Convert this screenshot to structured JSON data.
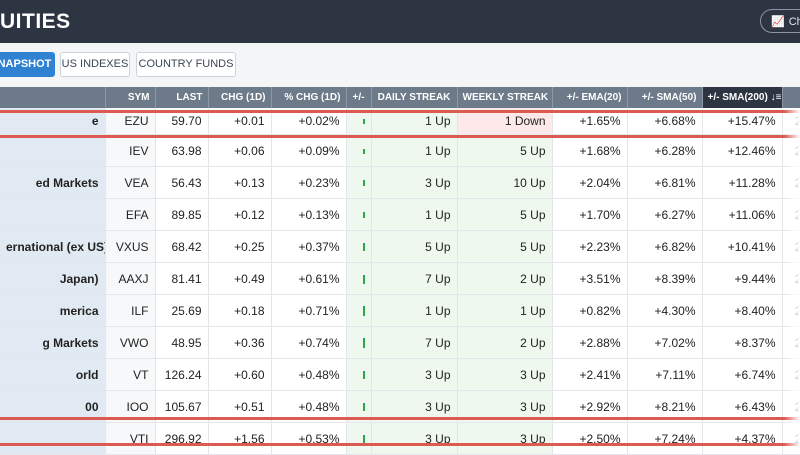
{
  "header": {
    "title": "UITIES",
    "chart_button": {
      "label": "Cha",
      "icon": "line-chart-icon"
    }
  },
  "tabs": [
    {
      "label": "NAPSHOT",
      "active": true
    },
    {
      "label": "US INDEXES",
      "active": false
    },
    {
      "label": "COUNTRY FUNDS",
      "active": false
    }
  ],
  "columns": {
    "name": "",
    "sym": "SYM",
    "last": "LAST",
    "chg": "CHG (1D)",
    "pchg": "% CHG (1D)",
    "pm": "+/-",
    "daily": "DAILY STREAK",
    "weekly": "WEEKLY STREAK",
    "ema20": "+/- EMA(20)",
    "sma50": "+/- SMA(50)",
    "sma200": "+/- SMA(200)",
    "sort_icon": "sort-descending-icon"
  },
  "rows": [
    {
      "name": "e",
      "sym": "EZU",
      "last": "59.70",
      "chg": "+0.01",
      "pchg": "+0.02%",
      "bar_level": 0.2,
      "daily": "1 Up",
      "weekly": "1 Down",
      "weekly_dir": "down",
      "ema20": "+1.65%",
      "sma50": "+6.68%",
      "sma200": "+15.47%",
      "extra": "2"
    },
    {
      "name": "",
      "sym": "IEV",
      "last": "63.98",
      "chg": "+0.06",
      "pchg": "+0.09%",
      "bar_level": 0.25,
      "daily": "1 Up",
      "weekly": "5 Up",
      "weekly_dir": "up",
      "ema20": "+1.68%",
      "sma50": "+6.28%",
      "sma200": "+12.46%",
      "extra": "2"
    },
    {
      "name": "ed Markets",
      "sym": "VEA",
      "last": "56.43",
      "chg": "+0.13",
      "pchg": "+0.23%",
      "bar_level": 0.35,
      "daily": "3 Up",
      "weekly": "10 Up",
      "weekly_dir": "up",
      "ema20": "+2.04%",
      "sma50": "+6.81%",
      "sma200": "+11.28%",
      "extra": "2"
    },
    {
      "name": "",
      "sym": "EFA",
      "last": "89.85",
      "chg": "+0.12",
      "pchg": "+0.13%",
      "bar_level": 0.3,
      "daily": "1 Up",
      "weekly": "5 Up",
      "weekly_dir": "up",
      "ema20": "+1.70%",
      "sma50": "+6.27%",
      "sma200": "+11.06%",
      "extra": "2"
    },
    {
      "name": "ernational (ex US)",
      "sym": "VXUS",
      "last": "68.42",
      "chg": "+0.25",
      "pchg": "+0.37%",
      "bar_level": 0.5,
      "daily": "5 Up",
      "weekly": "5 Up",
      "weekly_dir": "up",
      "ema20": "+2.23%",
      "sma50": "+6.82%",
      "sma200": "+10.41%",
      "extra": "2"
    },
    {
      "name": "Japan)",
      "sym": "AAXJ",
      "last": "81.41",
      "chg": "+0.49",
      "pchg": "+0.61%",
      "bar_level": 0.7,
      "daily": "7 Up",
      "weekly": "2 Up",
      "weekly_dir": "up",
      "ema20": "+3.51%",
      "sma50": "+8.39%",
      "sma200": "+9.44%",
      "extra": "2"
    },
    {
      "name": "merica",
      "sym": "ILF",
      "last": "25.69",
      "chg": "+0.18",
      "pchg": "+0.71%",
      "bar_level": 0.75,
      "daily": "1 Up",
      "weekly": "1 Up",
      "weekly_dir": "up",
      "ema20": "+0.82%",
      "sma50": "+4.30%",
      "sma200": "+8.40%",
      "extra": "2"
    },
    {
      "name": "g Markets",
      "sym": "VWO",
      "last": "48.95",
      "chg": "+0.36",
      "pchg": "+0.74%",
      "bar_level": 0.75,
      "daily": "7 Up",
      "weekly": "2 Up",
      "weekly_dir": "up",
      "ema20": "+2.88%",
      "sma50": "+7.02%",
      "sma200": "+8.37%",
      "extra": "2"
    },
    {
      "name": "orld",
      "sym": "VT",
      "last": "126.24",
      "chg": "+0.60",
      "pchg": "+0.48%",
      "bar_level": 0.6,
      "daily": "3 Up",
      "weekly": "3 Up",
      "weekly_dir": "up",
      "ema20": "+2.41%",
      "sma50": "+7.11%",
      "sma200": "+6.74%",
      "extra": "2"
    },
    {
      "name": "00",
      "sym": "IOO",
      "last": "105.67",
      "chg": "+0.51",
      "pchg": "+0.48%",
      "bar_level": 0.6,
      "daily": "3 Up",
      "weekly": "3 Up",
      "weekly_dir": "up",
      "ema20": "+2.92%",
      "sma50": "+8.21%",
      "sma200": "+6.43%",
      "extra": "2"
    },
    {
      "name": "",
      "sym": "VTI",
      "last": "296.92",
      "chg": "+1.56",
      "pchg": "+0.53%",
      "bar_level": 0.65,
      "daily": "3 Up",
      "weekly": "3 Up",
      "weekly_dir": "up",
      "ema20": "+2.50%",
      "sma50": "+7.24%",
      "sma200": "+4.37%",
      "extra": "2"
    }
  ],
  "colors": {
    "header_bg": "#2c3541",
    "tab_active": "#2f82d1",
    "column_header": "#6c7a8a",
    "positive": "#1c8d3a",
    "highlight_line": "#db5a52",
    "streak_up_bg": "#eef8ef",
    "streak_down_bg": "#fde9ea"
  }
}
